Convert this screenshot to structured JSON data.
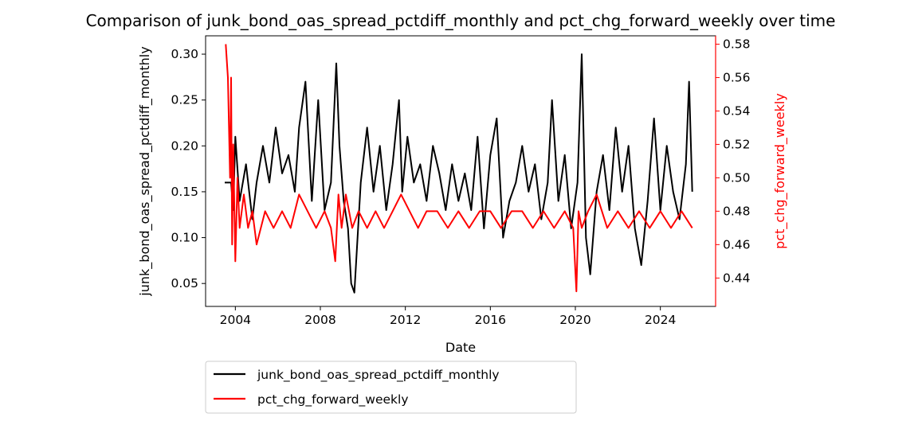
{
  "chart_data": {
    "type": "line",
    "title": "Comparison of junk_bond_oas_spread_pctdiff_monthly and pct_chg_forward_weekly over time",
    "xlabel": "Date",
    "ylabel_left": "junk_bond_oas_spread_pctdiff_monthly",
    "ylabel_right": "pct_chg_forward_weekly",
    "xlim": [
      2002.6,
      2026.6
    ],
    "ylim_left": [
      0.025,
      0.32
    ],
    "ylim_right": [
      0.423,
      0.585
    ],
    "x_ticks": [
      2004,
      2008,
      2012,
      2016,
      2020,
      2024
    ],
    "x_tick_labels": [
      "2004",
      "2008",
      "2012",
      "2016",
      "2020",
      "2024"
    ],
    "y_left_ticks": [
      0.05,
      0.1,
      0.15,
      0.2,
      0.25,
      0.3
    ],
    "y_left_tick_labels": [
      "0.05",
      "0.10",
      "0.15",
      "0.20",
      "0.25",
      "0.30"
    ],
    "y_right_ticks": [
      0.44,
      0.46,
      0.48,
      0.5,
      0.52,
      0.54,
      0.56,
      0.58
    ],
    "y_right_tick_labels": [
      "0.44",
      "0.46",
      "0.48",
      "0.50",
      "0.52",
      "0.54",
      "0.56",
      "0.58"
    ],
    "grid": false,
    "legend_position": "below-left",
    "series": [
      {
        "name": "junk_bond_oas_spread_pctdiff_monthly",
        "axis": "left",
        "color": "#000000",
        "x": [
          2003.5,
          2003.8,
          2003.9,
          2004.0,
          2004.2,
          2004.5,
          2004.8,
          2005.0,
          2005.3,
          2005.6,
          2005.9,
          2006.2,
          2006.5,
          2006.8,
          2007.0,
          2007.3,
          2007.6,
          2007.9,
          2008.2,
          2008.5,
          2008.75,
          2008.9,
          2009.1,
          2009.3,
          2009.45,
          2009.6,
          2009.9,
          2010.2,
          2010.5,
          2010.8,
          2011.1,
          2011.4,
          2011.7,
          2011.85,
          2012.1,
          2012.4,
          2012.7,
          2013.0,
          2013.3,
          2013.6,
          2013.9,
          2014.2,
          2014.5,
          2014.8,
          2015.1,
          2015.4,
          2015.7,
          2016.0,
          2016.3,
          2016.6,
          2016.9,
          2017.2,
          2017.5,
          2017.8,
          2018.1,
          2018.4,
          2018.7,
          2018.9,
          2019.2,
          2019.5,
          2019.8,
          2020.1,
          2020.3,
          2020.5,
          2020.7,
          2021.0,
          2021.3,
          2021.6,
          2021.9,
          2022.2,
          2022.5,
          2022.8,
          2023.1,
          2023.4,
          2023.7,
          2024.0,
          2024.3,
          2024.6,
          2024.9,
          2025.2,
          2025.35,
          2025.5
        ],
        "values": [
          0.16,
          0.16,
          0.13,
          0.21,
          0.14,
          0.18,
          0.12,
          0.16,
          0.2,
          0.16,
          0.22,
          0.17,
          0.19,
          0.15,
          0.22,
          0.27,
          0.14,
          0.25,
          0.13,
          0.16,
          0.29,
          0.2,
          0.14,
          0.11,
          0.05,
          0.04,
          0.16,
          0.22,
          0.15,
          0.2,
          0.13,
          0.18,
          0.25,
          0.15,
          0.21,
          0.16,
          0.18,
          0.14,
          0.2,
          0.17,
          0.13,
          0.18,
          0.14,
          0.17,
          0.13,
          0.21,
          0.11,
          0.19,
          0.23,
          0.1,
          0.14,
          0.16,
          0.2,
          0.15,
          0.18,
          0.12,
          0.16,
          0.25,
          0.14,
          0.19,
          0.11,
          0.16,
          0.3,
          0.1,
          0.06,
          0.15,
          0.19,
          0.13,
          0.22,
          0.15,
          0.2,
          0.11,
          0.07,
          0.14,
          0.23,
          0.13,
          0.2,
          0.15,
          0.12,
          0.18,
          0.27,
          0.15
        ]
      },
      {
        "name": "pct_chg_forward_weekly",
        "axis": "right",
        "color": "#ff0000",
        "x": [
          2003.55,
          2003.65,
          2003.75,
          2003.8,
          2003.85,
          2003.9,
          2004.0,
          2004.1,
          2004.2,
          2004.4,
          2004.6,
          2004.8,
          2005.0,
          2005.4,
          2005.8,
          2006.2,
          2006.6,
          2007.0,
          2007.4,
          2007.8,
          2008.2,
          2008.5,
          2008.7,
          2008.85,
          2009.0,
          2009.2,
          2009.5,
          2009.8,
          2010.2,
          2010.6,
          2011.0,
          2011.4,
          2011.8,
          2012.2,
          2012.6,
          2013.0,
          2013.5,
          2014.0,
          2014.5,
          2015.0,
          2015.5,
          2016.0,
          2016.5,
          2017.0,
          2017.5,
          2018.0,
          2018.5,
          2019.0,
          2019.5,
          2019.9,
          2020.05,
          2020.15,
          2020.3,
          2020.6,
          2021.0,
          2021.5,
          2022.0,
          2022.5,
          2023.0,
          2023.5,
          2024.0,
          2024.5,
          2025.0,
          2025.5
        ],
        "values": [
          0.58,
          0.56,
          0.5,
          0.56,
          0.46,
          0.52,
          0.45,
          0.5,
          0.47,
          0.49,
          0.47,
          0.48,
          0.46,
          0.48,
          0.47,
          0.48,
          0.47,
          0.49,
          0.48,
          0.47,
          0.48,
          0.47,
          0.45,
          0.49,
          0.47,
          0.49,
          0.47,
          0.48,
          0.47,
          0.48,
          0.47,
          0.48,
          0.49,
          0.48,
          0.47,
          0.48,
          0.48,
          0.47,
          0.48,
          0.47,
          0.48,
          0.48,
          0.47,
          0.48,
          0.48,
          0.47,
          0.48,
          0.47,
          0.48,
          0.47,
          0.432,
          0.48,
          0.47,
          0.48,
          0.49,
          0.47,
          0.48,
          0.47,
          0.48,
          0.47,
          0.48,
          0.47,
          0.48,
          0.47
        ]
      }
    ]
  }
}
